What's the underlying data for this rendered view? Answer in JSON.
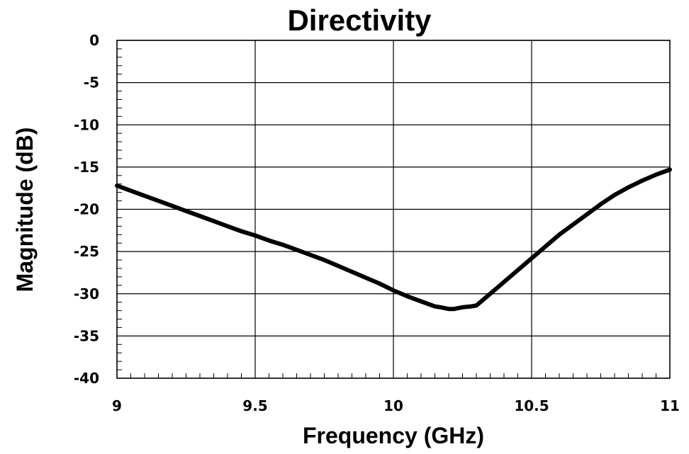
{
  "chart_data": {
    "type": "line",
    "title": "Directivity",
    "xlabel": "Frequency  (GHz)",
    "ylabel": "Magnitude (dB)",
    "xlim": [
      9,
      11
    ],
    "ylim": [
      -40,
      0
    ],
    "x_ticks": [
      9,
      9.5,
      10,
      10.5,
      11
    ],
    "x_tick_labels": [
      "9",
      "9.5",
      "10",
      "10.5",
      "11"
    ],
    "y_ticks": [
      0,
      -5,
      -10,
      -15,
      -20,
      -25,
      -30,
      -35,
      -40
    ],
    "y_tick_labels": [
      "0",
      "-5",
      "-10",
      "-15",
      "-20",
      "-25",
      "-30",
      "-35",
      "-40"
    ],
    "grid": true,
    "legend": "none",
    "series": [
      {
        "name": "Directivity",
        "color": "#000000",
        "x": [
          9.0,
          9.05,
          9.1,
          9.15,
          9.2,
          9.25,
          9.3,
          9.35,
          9.4,
          9.45,
          9.5,
          9.55,
          9.6,
          9.65,
          9.7,
          9.75,
          9.8,
          9.85,
          9.9,
          9.95,
          10.0,
          10.05,
          10.1,
          10.15,
          10.17,
          10.2,
          10.22,
          10.25,
          10.28,
          10.3,
          10.35,
          10.4,
          10.45,
          10.5,
          10.55,
          10.6,
          10.65,
          10.7,
          10.75,
          10.8,
          10.85,
          10.9,
          10.95,
          11.0
        ],
        "y": [
          -17.2,
          -17.8,
          -18.4,
          -19.0,
          -19.6,
          -20.2,
          -20.8,
          -21.4,
          -22.0,
          -22.6,
          -23.1,
          -23.7,
          -24.2,
          -24.8,
          -25.4,
          -26.0,
          -26.7,
          -27.4,
          -28.1,
          -28.8,
          -29.6,
          -30.3,
          -30.9,
          -31.5,
          -31.6,
          -31.8,
          -31.8,
          -31.6,
          -31.5,
          -31.4,
          -30.0,
          -28.6,
          -27.2,
          -25.8,
          -24.4,
          -23.0,
          -21.8,
          -20.6,
          -19.4,
          -18.3,
          -17.4,
          -16.6,
          -15.9,
          -15.3
        ]
      }
    ]
  }
}
